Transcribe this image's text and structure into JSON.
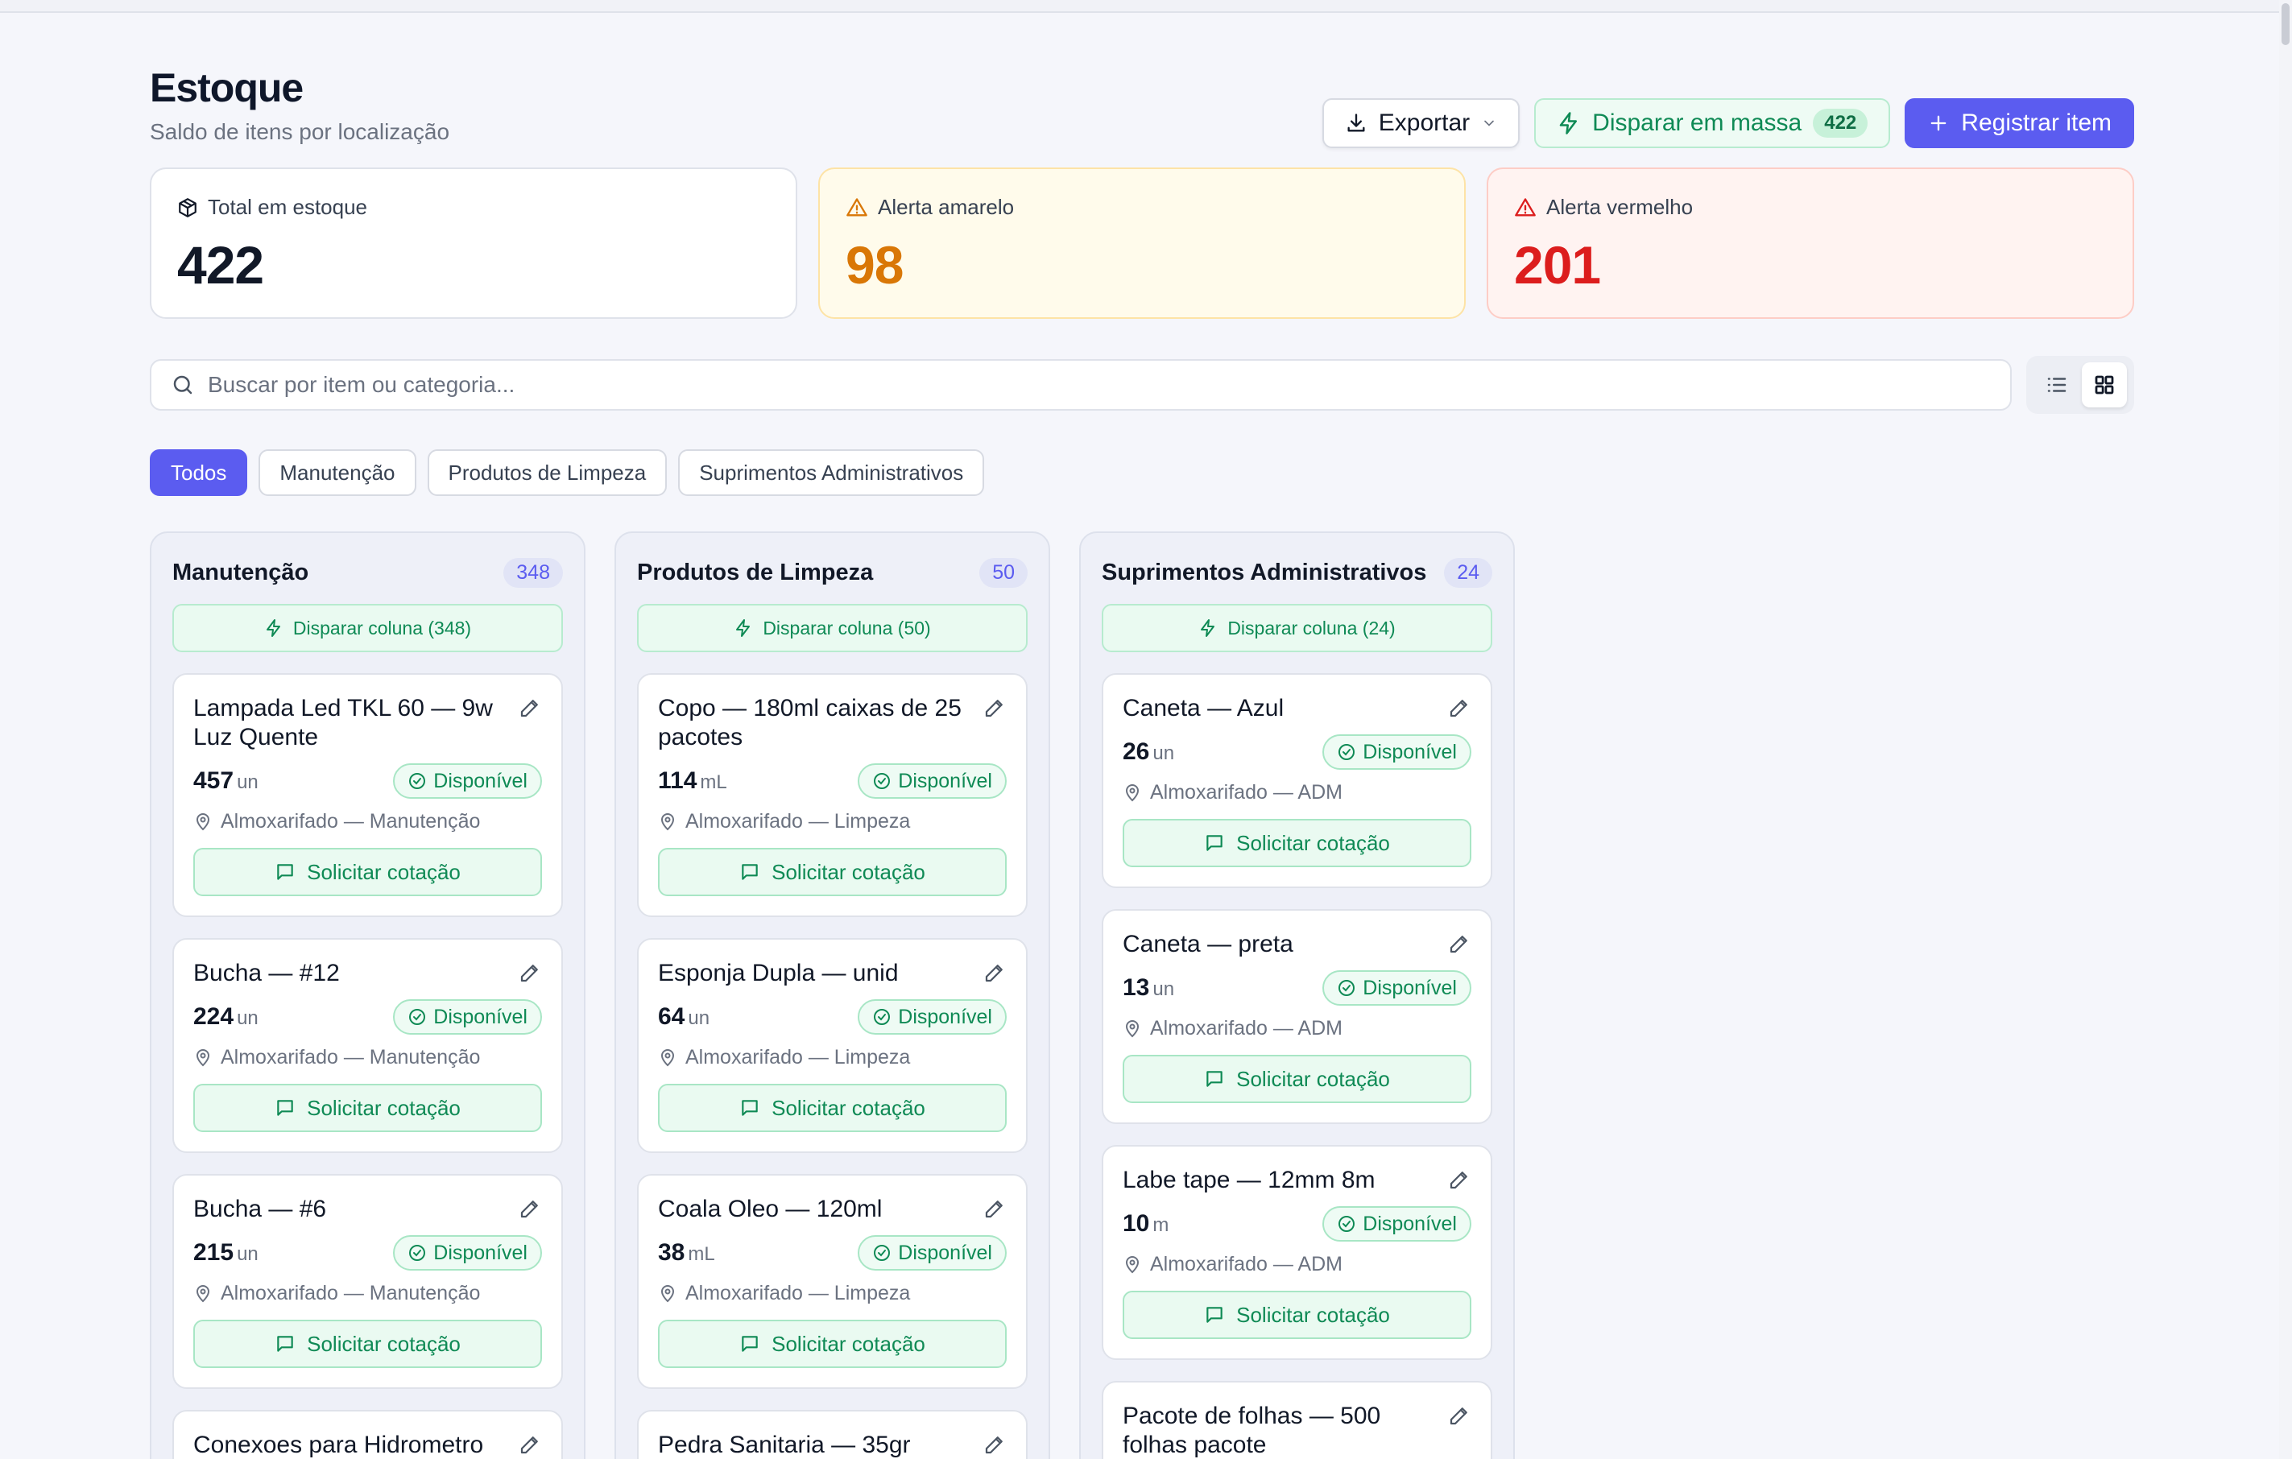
{
  "page": {
    "title": "Estoque",
    "subtitle": "Saldo de itens por localização"
  },
  "actions": {
    "export_label": "Exportar",
    "mass_label": "Disparar em massa",
    "mass_count": "422",
    "register_label": "Registrar item"
  },
  "stats": [
    {
      "label": "Total em estoque",
      "value": "422",
      "icon": "package-icon"
    },
    {
      "label": "Alerta amarelo",
      "value": "98",
      "icon": "warning-icon",
      "color": "#d97706"
    },
    {
      "label": "Alerta vermelho",
      "value": "201",
      "icon": "warning-icon",
      "color": "#dc1d1d"
    }
  ],
  "search": {
    "placeholder": "Buscar por item ou categoria..."
  },
  "filters": [
    "Todos",
    "Manutenção",
    "Produtos de Limpeza",
    "Suprimentos Administrativos"
  ],
  "colors": {
    "accent": "#5b5cf0",
    "success": "#0f8a55"
  },
  "columns": [
    {
      "title": "Manutenção",
      "count": "348",
      "dispatch_label": "Disparar coluna (348)",
      "items": [
        {
          "name": "Lampada Led TKL 60 — 9w Luz Quente",
          "qty": "457",
          "unit": "un",
          "status": "Disponível",
          "location": "Almoxarifado — Manutenção",
          "action": "Solicitar cotação"
        },
        {
          "name": "Bucha — #12",
          "qty": "224",
          "unit": "un",
          "status": "Disponível",
          "location": "Almoxarifado — Manutenção",
          "action": "Solicitar cotação"
        },
        {
          "name": "Bucha — #6",
          "qty": "215",
          "unit": "un",
          "status": "Disponível",
          "location": "Almoxarifado — Manutenção",
          "action": "Solicitar cotação"
        },
        {
          "name": "Conexoes para Hidrometro",
          "qty": "",
          "unit": "",
          "status": "",
          "location": "",
          "action": ""
        }
      ]
    },
    {
      "title": "Produtos de Limpeza",
      "count": "50",
      "dispatch_label": "Disparar coluna (50)",
      "items": [
        {
          "name": "Copo — 180ml caixas de 25 pacotes",
          "qty": "114",
          "unit": "mL",
          "status": "Disponível",
          "location": "Almoxarifado — Limpeza",
          "action": "Solicitar cotação"
        },
        {
          "name": "Esponja Dupla — unid",
          "qty": "64",
          "unit": "un",
          "status": "Disponível",
          "location": "Almoxarifado — Limpeza",
          "action": "Solicitar cotação"
        },
        {
          "name": "Coala Oleo — 120ml",
          "qty": "38",
          "unit": "mL",
          "status": "Disponível",
          "location": "Almoxarifado — Limpeza",
          "action": "Solicitar cotação"
        },
        {
          "name": "Pedra Sanitaria — 35gr",
          "qty": "",
          "unit": "",
          "status": "",
          "location": "",
          "action": ""
        }
      ]
    },
    {
      "title": "Suprimentos Administrativos",
      "count": "24",
      "dispatch_label": "Disparar coluna (24)",
      "items": [
        {
          "name": "Caneta — Azul",
          "qty": "26",
          "unit": "un",
          "status": "Disponível",
          "location": "Almoxarifado — ADM",
          "action": "Solicitar cotação"
        },
        {
          "name": "Caneta — preta",
          "qty": "13",
          "unit": "un",
          "status": "Disponível",
          "location": "Almoxarifado — ADM",
          "action": "Solicitar cotação"
        },
        {
          "name": "Labe tape — 12mm 8m",
          "qty": "10",
          "unit": "m",
          "status": "Disponível",
          "location": "Almoxarifado — ADM",
          "action": "Solicitar cotação"
        },
        {
          "name": "Pacote de folhas — 500 folhas pacote",
          "qty": "",
          "unit": "",
          "status": "",
          "location": "",
          "action": ""
        }
      ]
    }
  ]
}
